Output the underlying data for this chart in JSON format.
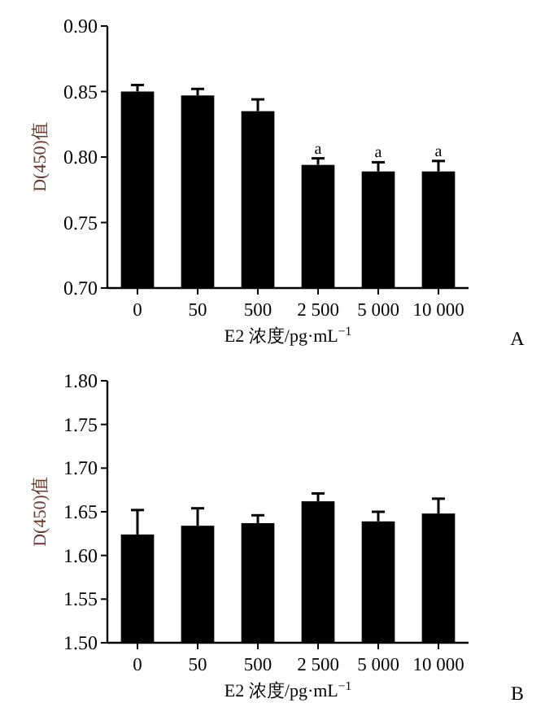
{
  "chart_data": [
    {
      "type": "bar",
      "ylabel": "D(450)值",
      "xlabel": "E2 浓度/pg·mL$^{−1}$",
      "categories": [
        "0",
        "50",
        "500",
        "2 500",
        "5 000",
        "10 000"
      ],
      "series": [
        {
          "color": "#000000",
          "values": [
            0.85,
            0.847,
            0.835,
            0.794,
            0.789,
            0.789
          ],
          "errors": [
            0.005,
            0.005,
            0.009,
            0.005,
            0.007,
            0.008
          ]
        }
      ],
      "ylim": [
        0.7,
        0.9
      ],
      "yticks": [
        {
          "value": 0.7,
          "label": "0.70"
        },
        {
          "value": 0.75,
          "label": "0.75"
        },
        {
          "value": 0.8,
          "label": "0.80"
        },
        {
          "value": 0.85,
          "label": "0.85"
        },
        {
          "value": 0.9,
          "label": "0.90"
        }
      ],
      "annotations": [
        {
          "text": "a",
          "x": "2 500",
          "y": 0.799
        },
        {
          "text": "a",
          "x": "5 000",
          "y": 0.796
        },
        {
          "text": "a",
          "x": "10 000",
          "y": 0.797
        },
        "A"
      ]
    },
    {
      "type": "bar",
      "ylabel": "D(450)值",
      "xlabel": "E2 浓度/pg·mL$^{−1}$",
      "categories": [
        "0",
        "50",
        "500",
        "2 500",
        "5 000",
        "10 000"
      ],
      "series": [
        {
          "color": "#000000",
          "values": [
            1.624,
            1.634,
            1.637,
            1.662,
            1.639,
            1.648
          ],
          "errors": [
            0.028,
            0.02,
            0.009,
            0.009,
            0.011,
            0.017
          ]
        }
      ],
      "ylim": [
        1.5,
        1.8
      ],
      "yticks": [
        {
          "value": 1.5,
          "label": "1.50"
        },
        {
          "value": 1.55,
          "label": "1.55"
        },
        {
          "value": 1.6,
          "label": "1.60"
        },
        {
          "value": 1.65,
          "label": "1.65"
        },
        {
          "value": 1.7,
          "label": "1.70"
        },
        {
          "value": 1.75,
          "label": "1.75"
        },
        {
          "value": 1.8,
          "label": "1.80"
        }
      ],
      "annotations": [
        "B"
      ]
    }
  ]
}
